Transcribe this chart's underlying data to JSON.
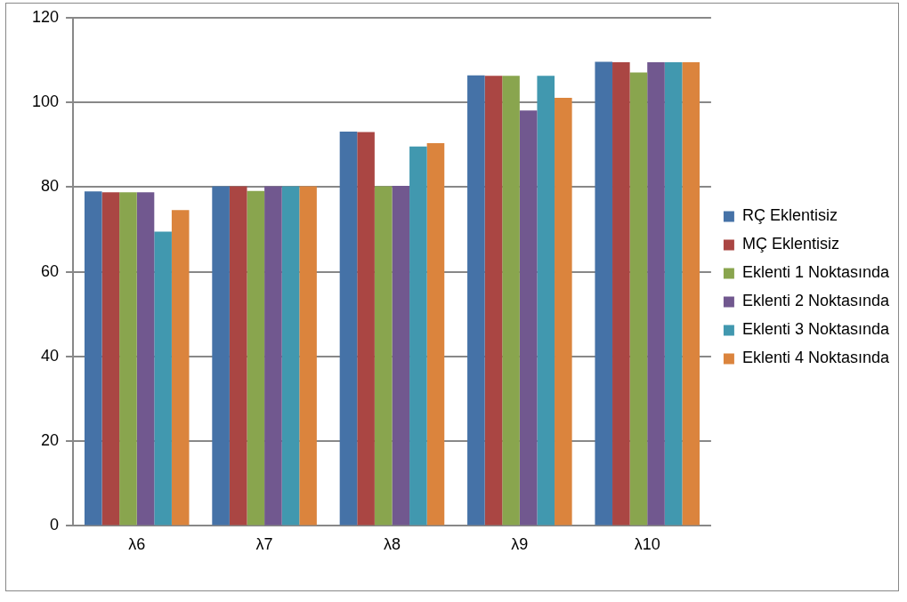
{
  "chart_data": {
    "type": "bar",
    "categories": [
      "λ6",
      "λ7",
      "λ8",
      "λ9",
      "λ10"
    ],
    "series": [
      {
        "name": "RÇ Eklentisiz",
        "color": "#4572a7",
        "values": [
          79,
          80.2,
          93.1,
          106.4,
          109.6
        ]
      },
      {
        "name": "MÇ Eklentisiz",
        "color": "#aa4643",
        "values": [
          78.8,
          80.2,
          93,
          106.3,
          109.5
        ]
      },
      {
        "name": "Eklenti 1 Noktasında",
        "color": "#89a54e",
        "values": [
          78.8,
          79.1,
          80.2,
          106.3,
          107.1
        ]
      },
      {
        "name": "Eklenti 2 Noktasında",
        "color": "#71588f",
        "values": [
          78.8,
          80.2,
          80.3,
          98.1,
          109.5
        ]
      },
      {
        "name": "Eklenti 3 Noktasında",
        "color": "#4198af",
        "values": [
          69.5,
          80.2,
          89.6,
          106.3,
          109.5
        ]
      },
      {
        "name": "Eklenti 4 Noktasında",
        "color": "#db843d",
        "values": [
          74.6,
          80.2,
          90.4,
          101.1,
          109.5
        ]
      }
    ],
    "ylim": [
      0,
      120
    ],
    "yticks": [
      0,
      20,
      40,
      60,
      80,
      100,
      120
    ],
    "grid": "y",
    "legend": "right"
  }
}
